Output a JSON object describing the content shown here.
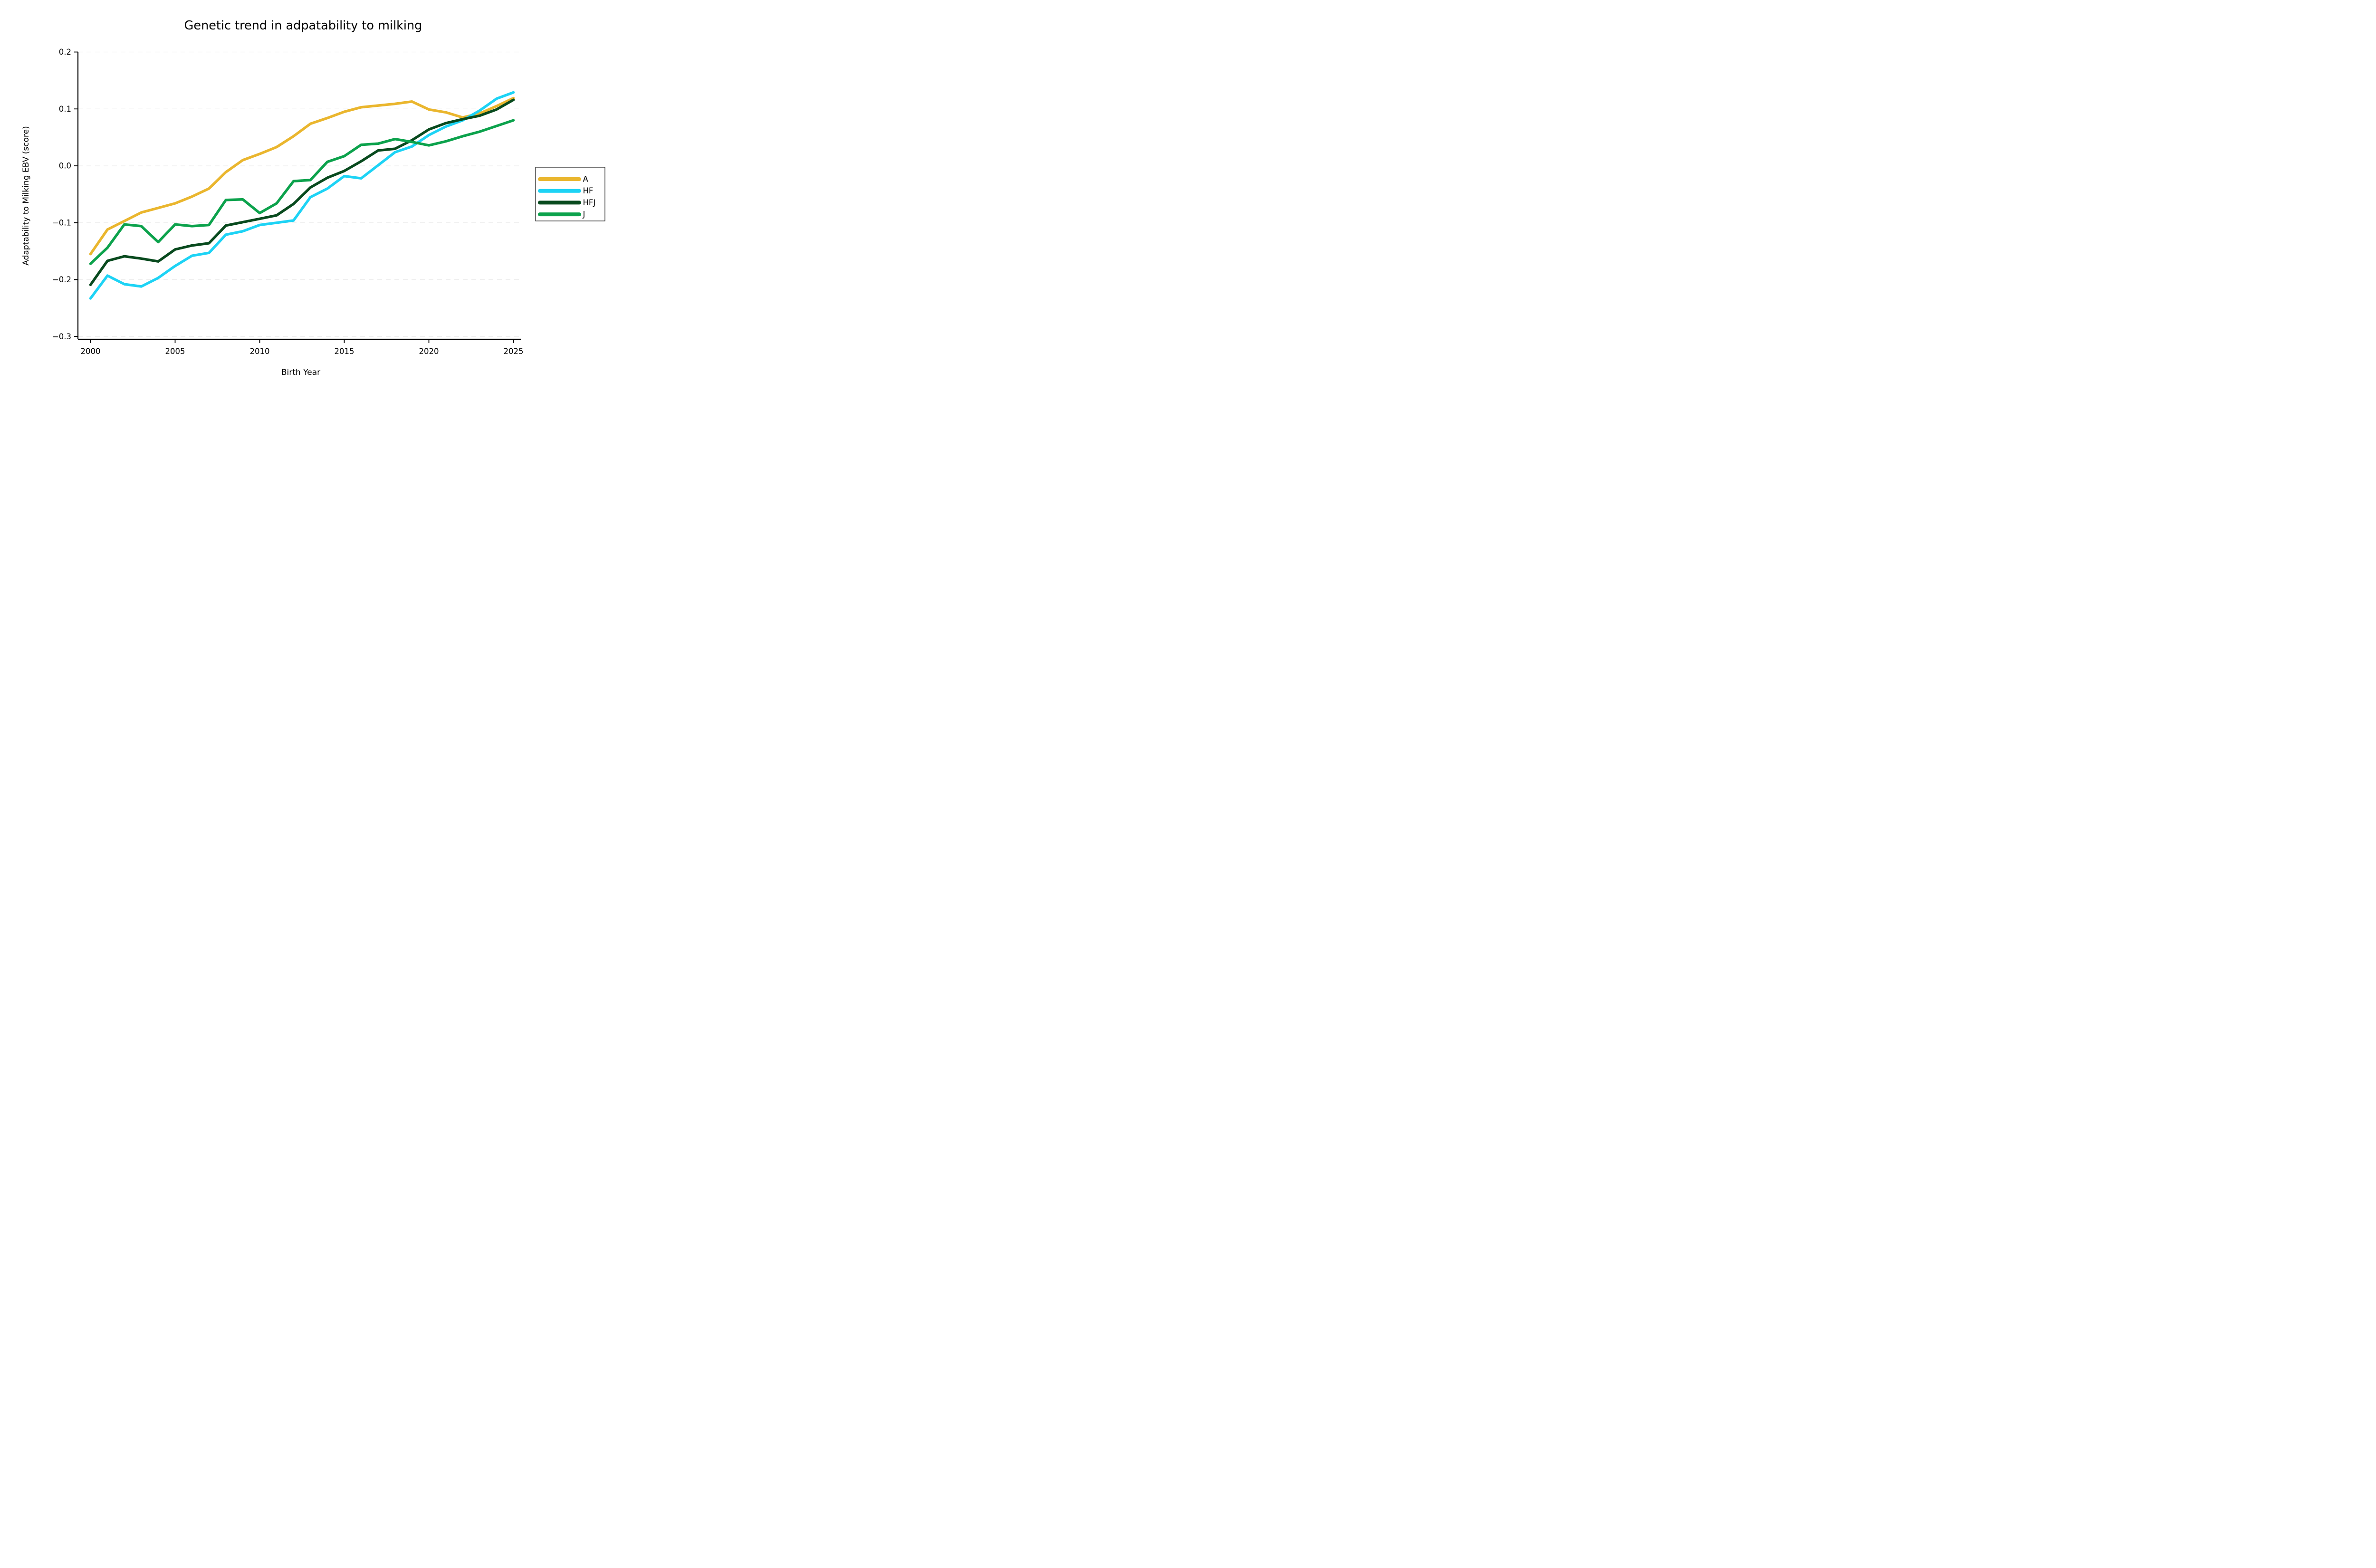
{
  "chart_data": {
    "type": "line",
    "title": "Genetic trend in adpatability to milking",
    "xlabel": "Birth Year",
    "ylabel": "Adaptability to Milking EBV (score)",
    "x": [
      2000,
      2001,
      2002,
      2003,
      2004,
      2005,
      2006,
      2007,
      2008,
      2009,
      2010,
      2011,
      2012,
      2013,
      2014,
      2015,
      2016,
      2017,
      2018,
      2019,
      2020,
      2021,
      2022,
      2023,
      2024,
      2025
    ],
    "series": [
      {
        "name": "A",
        "color": "#eab62e",
        "values": [
          -0.155,
          -0.112,
          -0.097,
          -0.082,
          -0.074,
          -0.066,
          -0.054,
          -0.04,
          -0.011,
          0.01,
          0.021,
          0.033,
          0.052,
          0.074,
          0.084,
          0.095,
          0.103,
          0.106,
          0.109,
          0.113,
          0.099,
          0.094,
          0.085,
          0.092,
          0.105,
          0.119
        ]
      },
      {
        "name": "HF",
        "color": "#1dd3f5",
        "values": [
          -0.233,
          -0.193,
          -0.208,
          -0.212,
          -0.197,
          -0.176,
          -0.158,
          -0.153,
          -0.121,
          -0.115,
          -0.104,
          -0.1,
          -0.096,
          -0.055,
          -0.04,
          -0.018,
          -0.022,
          0.001,
          0.024,
          0.034,
          0.054,
          0.069,
          0.08,
          0.097,
          0.118,
          0.129
        ]
      },
      {
        "name": "HFJ",
        "color": "#084a1e",
        "values": [
          -0.209,
          -0.167,
          -0.159,
          -0.163,
          -0.168,
          -0.147,
          -0.14,
          -0.136,
          -0.105,
          -0.099,
          -0.093,
          -0.087,
          -0.067,
          -0.038,
          -0.021,
          -0.009,
          0.008,
          0.027,
          0.03,
          0.045,
          0.064,
          0.075,
          0.082,
          0.088,
          0.099,
          0.116
        ]
      },
      {
        "name": "J",
        "color": "#0ca24c",
        "values": [
          -0.172,
          -0.144,
          -0.103,
          -0.106,
          -0.134,
          -0.103,
          -0.106,
          -0.104,
          -0.06,
          -0.059,
          -0.083,
          -0.066,
          -0.027,
          -0.025,
          0.007,
          0.017,
          0.037,
          0.039,
          0.047,
          0.042,
          0.036,
          0.043,
          0.052,
          0.06,
          0.07,
          0.08
        ]
      }
    ],
    "xticks": [
      2000,
      2005,
      2010,
      2015,
      2020,
      2025
    ],
    "yticks": [
      0.2,
      0.1,
      0.0,
      -0.1,
      -0.2,
      -0.3
    ],
    "xlim": [
      1999.25,
      2025.4
    ],
    "ylim": [
      -0.305,
      0.2
    ],
    "grid": "horizontal-dashed",
    "grid_color": "#ececec",
    "legend_position": "right",
    "spine_color": "#000000",
    "background": "#ffffff"
  }
}
